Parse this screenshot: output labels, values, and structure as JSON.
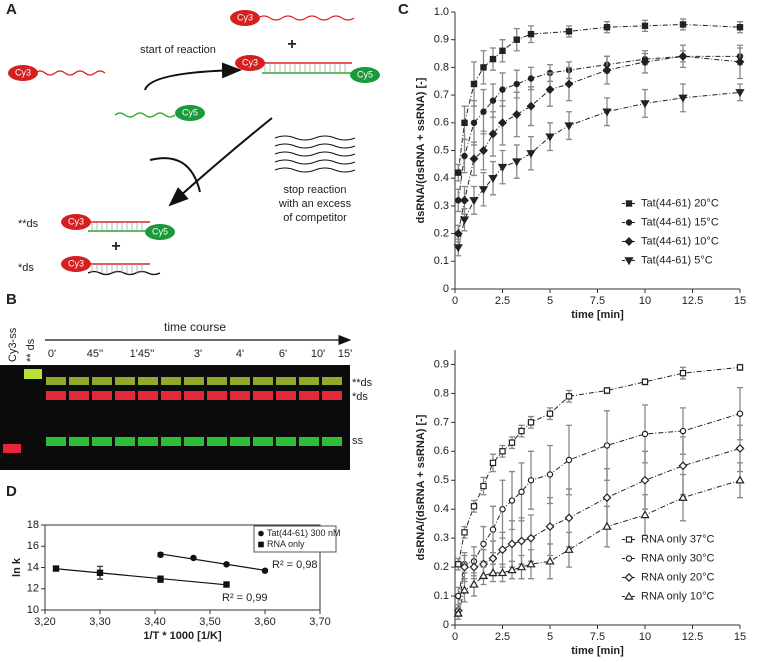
{
  "panel_a": {
    "label": "A",
    "start_label": "start of reaction",
    "cy3": "Cy3",
    "cy5": "Cy5",
    "plus": "+",
    "product_double": "**ds",
    "product_single": "*ds",
    "stop_label": [
      "stop reaction",
      "with an excess",
      "of competitor"
    ]
  },
  "panel_b": {
    "label": "B",
    "time_label": "time course",
    "lane_labels": [
      "Cy3-ss",
      "** ds"
    ],
    "times": [
      "0'",
      "45''",
      "1'45''",
      "3'",
      "4'",
      "6'",
      "10'",
      "15'"
    ],
    "band_labels": [
      "**ds",
      "*ds",
      "ss"
    ]
  },
  "chart_data": [
    {
      "type": "line",
      "label": "C",
      "xlabel": "time [min]",
      "ylabel": "dsRNA/(dsRNA + ssRNA) [-]",
      "xlim": [
        0,
        15
      ],
      "ylim": [
        0,
        1
      ],
      "xticks": [
        0,
        2.5,
        5,
        7.5,
        10,
        12.5,
        15
      ],
      "yticks": [
        0,
        0.1,
        0.2,
        0.3,
        0.4,
        0.5,
        0.6,
        0.7,
        0.8,
        0.9,
        {
          "value": 1,
          "label": "1.0"
        }
      ],
      "legend": "lower right",
      "line_style": "dashdot",
      "error_color": "#888",
      "series": [
        {
          "name": "Tat(44-61) 20°C",
          "color": "#222",
          "marker": "square",
          "marker_fill": true,
          "x": [
            0.17,
            0.5,
            1,
            1.5,
            2,
            2.5,
            3.25,
            4,
            6,
            8,
            10,
            12,
            15
          ],
          "values": [
            0.42,
            0.6,
            0.74,
            0.8,
            0.83,
            0.86,
            0.9,
            0.92,
            0.93,
            0.945,
            0.95,
            0.955,
            0.945
          ],
          "errors": [
            0.03,
            0.06,
            0.08,
            0.06,
            0.04,
            0.04,
            0.04,
            0.03,
            0.02,
            0.02,
            0.02,
            0.02,
            0.02
          ]
        },
        {
          "name": "Tat(44-61) 15°C",
          "color": "#222",
          "marker": "circle",
          "marker_fill": true,
          "x": [
            0.17,
            0.5,
            1,
            1.5,
            2,
            2.5,
            3.25,
            4,
            5,
            6,
            8,
            10,
            12,
            15
          ],
          "values": [
            0.32,
            0.48,
            0.6,
            0.64,
            0.68,
            0.72,
            0.74,
            0.76,
            0.78,
            0.79,
            0.81,
            0.83,
            0.84,
            0.84
          ],
          "errors": [
            0.04,
            0.06,
            0.08,
            0.08,
            0.06,
            0.06,
            0.05,
            0.04,
            0.03,
            0.03,
            0.03,
            0.02,
            0.02,
            0.03
          ]
        },
        {
          "name": "Tat(44-61) 10°C",
          "color": "#222",
          "marker": "diamond",
          "marker_fill": true,
          "x": [
            0.17,
            0.5,
            1,
            1.5,
            2,
            2.5,
            3.25,
            4,
            5,
            6,
            8,
            10,
            12,
            15
          ],
          "values": [
            0.2,
            0.32,
            0.47,
            0.5,
            0.56,
            0.6,
            0.63,
            0.66,
            0.72,
            0.74,
            0.79,
            0.82,
            0.84,
            0.82
          ],
          "errors": [
            0.03,
            0.05,
            0.06,
            0.07,
            0.08,
            0.08,
            0.08,
            0.07,
            0.06,
            0.06,
            0.05,
            0.04,
            0.04,
            0.06
          ]
        },
        {
          "name": "Tat(44-61) 5°C",
          "color": "#222",
          "marker": "triangle-down",
          "marker_fill": true,
          "x": [
            0.17,
            0.5,
            1,
            1.5,
            2,
            2.5,
            3.25,
            4,
            5,
            6,
            8,
            10,
            12,
            15
          ],
          "values": [
            0.15,
            0.25,
            0.32,
            0.36,
            0.4,
            0.44,
            0.46,
            0.49,
            0.55,
            0.59,
            0.64,
            0.67,
            0.69,
            0.71
          ],
          "errors": [
            0.03,
            0.04,
            0.05,
            0.06,
            0.06,
            0.06,
            0.06,
            0.06,
            0.05,
            0.05,
            0.05,
            0.05,
            0.05,
            0.03
          ]
        }
      ]
    },
    {
      "type": "line",
      "xlabel": "time [min]",
      "ylabel": "dsRNA/(dsRNA + ssRNA) [-]",
      "xlim": [
        0,
        15
      ],
      "ylim": [
        0,
        0.95
      ],
      "xticks": [
        0,
        2.5,
        5,
        7.5,
        10,
        12.5,
        15
      ],
      "yticks": [
        0,
        0.1,
        0.2,
        0.3,
        0.4,
        0.5,
        0.6,
        0.7,
        0.8,
        0.9
      ],
      "legend": "lower right",
      "line_style": "dashdot",
      "error_color": "#888",
      "series": [
        {
          "name": "RNA only 37°C",
          "color": "#222",
          "marker": "square",
          "marker_fill": false,
          "x": [
            0.17,
            0.5,
            1,
            1.5,
            2,
            2.5,
            3,
            3.5,
            4,
            5,
            6,
            8,
            10,
            12,
            15
          ],
          "values": [
            0.21,
            0.32,
            0.41,
            0.48,
            0.56,
            0.6,
            0.63,
            0.67,
            0.7,
            0.73,
            0.79,
            0.81,
            0.84,
            0.87,
            0.89
          ],
          "errors": [
            0.02,
            0.02,
            0.02,
            0.03,
            0.03,
            0.02,
            0.02,
            0.02,
            0.02,
            0.02,
            0.02,
            0.01,
            0.01,
            0.02,
            0.01
          ]
        },
        {
          "name": "RNA only 30°C",
          "color": "#222",
          "marker": "circle",
          "marker_fill": false,
          "x": [
            0.17,
            0.5,
            1,
            1.5,
            2,
            2.5,
            3,
            3.5,
            4,
            5,
            6,
            8,
            10,
            12,
            15
          ],
          "values": [
            0.1,
            0.21,
            0.22,
            0.28,
            0.33,
            0.4,
            0.43,
            0.46,
            0.5,
            0.52,
            0.57,
            0.62,
            0.66,
            0.67,
            0.73
          ],
          "errors": [
            0.03,
            0.03,
            0.05,
            0.06,
            0.08,
            0.1,
            0.1,
            0.1,
            0.1,
            0.1,
            0.12,
            0.12,
            0.1,
            0.08,
            0.09
          ]
        },
        {
          "name": "RNA only 20°C",
          "color": "#222",
          "marker": "diamond",
          "marker_fill": false,
          "x": [
            0.17,
            0.5,
            1,
            1.5,
            2,
            2.5,
            3,
            3.5,
            4,
            5,
            6,
            8,
            10,
            12,
            15
          ],
          "values": [
            0.05,
            0.2,
            0.2,
            0.21,
            0.23,
            0.26,
            0.28,
            0.29,
            0.3,
            0.34,
            0.37,
            0.44,
            0.5,
            0.55,
            0.61
          ],
          "errors": [
            0.02,
            0.05,
            0.04,
            0.05,
            0.06,
            0.06,
            0.08,
            0.08,
            0.08,
            0.1,
            0.1,
            0.1,
            0.1,
            0.1,
            0.08
          ]
        },
        {
          "name": "RNA only 10°C",
          "color": "#222",
          "marker": "triangle-up",
          "marker_fill": false,
          "x": [
            0.17,
            0.5,
            1,
            1.5,
            2,
            2.5,
            3,
            3.5,
            4,
            5,
            6,
            8,
            10,
            12,
            15
          ],
          "values": [
            0.04,
            0.12,
            0.14,
            0.17,
            0.18,
            0.18,
            0.19,
            0.2,
            0.21,
            0.22,
            0.26,
            0.34,
            0.38,
            0.44,
            0.5
          ],
          "errors": [
            0.02,
            0.04,
            0.04,
            0.03,
            0.03,
            0.03,
            0.03,
            0.04,
            0.05,
            0.06,
            0.06,
            0.07,
            0.07,
            0.08,
            0.06
          ]
        }
      ]
    },
    {
      "type": "scatter",
      "label": "D",
      "xlabel": "1/T * 1000 [1/K]",
      "ylabel": "ln k",
      "xlim": [
        3.2,
        3.7
      ],
      "ylim": [
        10,
        18
      ],
      "xticks": [
        {
          "value": 3.2,
          "label": "3,20"
        },
        {
          "value": 3.3,
          "label": "3,30"
        },
        {
          "value": 3.4,
          "label": "3,40"
        },
        {
          "value": 3.5,
          "label": "3,50"
        },
        {
          "value": 3.6,
          "label": "3,60"
        },
        {
          "value": 3.7,
          "label": "3,70"
        }
      ],
      "yticks": [
        10,
        12,
        14,
        16,
        18
      ],
      "legend": "upper right",
      "trendline": true,
      "error_color": "#444",
      "annotations": [
        "R² = 0,98",
        "R² = 0,99"
      ],
      "series": [
        {
          "name": "Tat(44-61) 300 nM",
          "color": "#111",
          "marker": "circle",
          "marker_fill": true,
          "x": [
            3.41,
            3.47,
            3.53,
            3.6
          ],
          "values": [
            15.2,
            14.9,
            14.3,
            13.7
          ],
          "errors": [
            0.2,
            0.1,
            0.1,
            0.1
          ]
        },
        {
          "name": "RNA only",
          "color": "#111",
          "marker": "square",
          "marker_fill": true,
          "x": [
            3.22,
            3.3,
            3.41,
            3.53
          ],
          "values": [
            13.9,
            13.5,
            12.9,
            12.4
          ],
          "errors": [
            0.2,
            0.6,
            0.3,
            0.2
          ]
        }
      ]
    }
  ]
}
